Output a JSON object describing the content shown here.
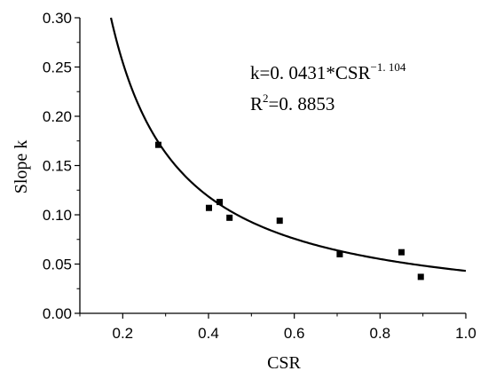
{
  "chart_data": {
    "type": "scatter",
    "title": "",
    "xlabel": "CSR",
    "ylabel": "Slope k",
    "xlim": [
      0.1,
      1.0
    ],
    "ylim": [
      0.0,
      0.3
    ],
    "x_ticks": [
      0.2,
      0.4,
      0.6,
      0.8,
      1.0
    ],
    "y_ticks": [
      0.0,
      0.05,
      0.1,
      0.15,
      0.2,
      0.25,
      0.3
    ],
    "x_tick_labels": [
      "0.2",
      "0.4",
      "0.6",
      "0.8",
      "1.0"
    ],
    "y_tick_labels": [
      "0.00",
      "0.05",
      "0.10",
      "0.15",
      "0.20",
      "0.25",
      "0.30"
    ],
    "grid": false,
    "points": [
      {
        "x": 0.283,
        "y": 0.171
      },
      {
        "x": 0.401,
        "y": 0.107
      },
      {
        "x": 0.426,
        "y": 0.113
      },
      {
        "x": 0.449,
        "y": 0.097
      },
      {
        "x": 0.566,
        "y": 0.094
      },
      {
        "x": 0.706,
        "y": 0.06
      },
      {
        "x": 0.85,
        "y": 0.062
      },
      {
        "x": 0.895,
        "y": 0.037
      }
    ],
    "fit": {
      "coefficient": 0.0431,
      "exponent": -1.104
    },
    "annotations": {
      "equation_prefix": "k=0. 0431*CSR",
      "equation_exponent": "−1. 104",
      "r2_prefix": "R",
      "r2_superscript": "2",
      "r2_suffix": "=0. 8853"
    }
  }
}
